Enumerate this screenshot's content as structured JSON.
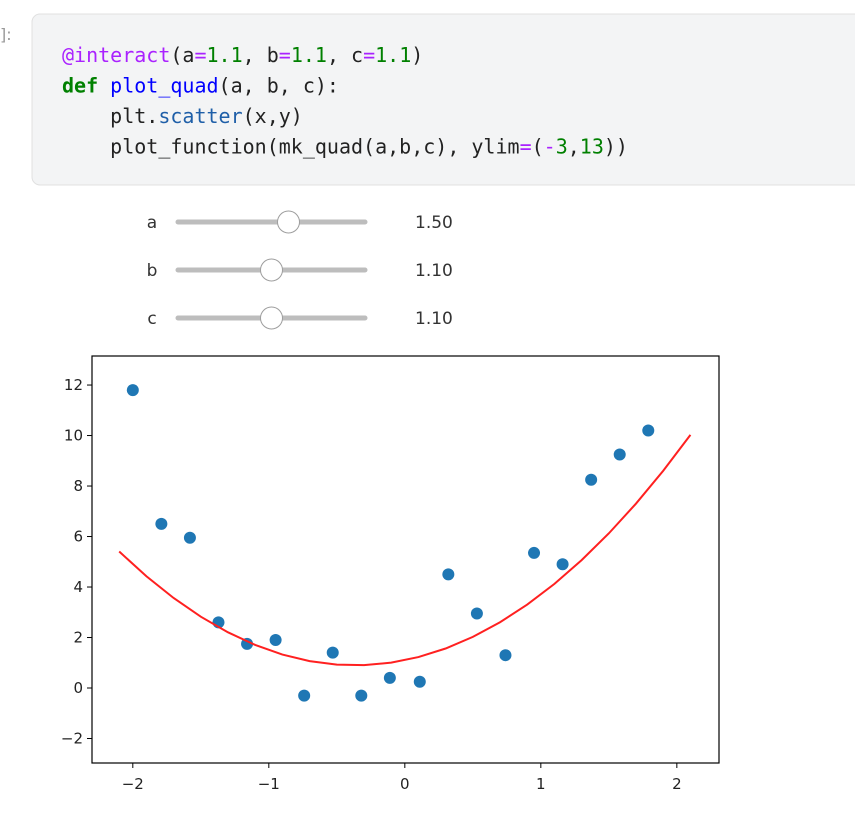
{
  "prompt": "]:",
  "code": {
    "lines": [
      [
        {
          "text": "@interact",
          "color": "#aa22ff"
        },
        {
          "text": "(a",
          "color": "#222222"
        },
        {
          "text": "=",
          "color": "#aa22ff"
        },
        {
          "text": "1.1",
          "color": "#008000"
        },
        {
          "text": ", b",
          "color": "#222222"
        },
        {
          "text": "=",
          "color": "#aa22ff"
        },
        {
          "text": "1.1",
          "color": "#008000"
        },
        {
          "text": ", c",
          "color": "#222222"
        },
        {
          "text": "=",
          "color": "#aa22ff"
        },
        {
          "text": "1.1",
          "color": "#008000"
        },
        {
          "text": ")",
          "color": "#222222"
        }
      ],
      [
        {
          "text": "def",
          "color": "#008000",
          "bold": true
        },
        {
          "text": " ",
          "color": "#222222"
        },
        {
          "text": "plot_quad",
          "color": "#0000ff"
        },
        {
          "text": "(a, b, c):",
          "color": "#222222"
        }
      ],
      [
        {
          "text": "    plt.",
          "color": "#222222"
        },
        {
          "text": "scatter",
          "color": "#1f5fa8"
        },
        {
          "text": "(x,y)",
          "color": "#222222"
        }
      ],
      [
        {
          "text": "    plot_function(mk_quad(a,b,c), ylim",
          "color": "#222222"
        },
        {
          "text": "=",
          "color": "#aa22ff"
        },
        {
          "text": "(",
          "color": "#222222"
        },
        {
          "text": "-",
          "color": "#aa22ff"
        },
        {
          "text": "3",
          "color": "#008000"
        },
        {
          "text": ",",
          "color": "#222222"
        },
        {
          "text": "13",
          "color": "#008000"
        },
        {
          "text": "))",
          "color": "#222222"
        }
      ]
    ]
  },
  "sliders": [
    {
      "label": "a",
      "value": 1.5,
      "value_label": "1.50",
      "range": [
        -1.1,
        3.3
      ]
    },
    {
      "label": "b",
      "value": 1.1,
      "value_label": "1.10",
      "range": [
        -1.1,
        3.3
      ]
    },
    {
      "label": "c",
      "value": 1.1,
      "value_label": "1.10",
      "range": [
        -1.1,
        3.3
      ]
    }
  ],
  "chart_data": {
    "type": "scatter",
    "xlim": [
      -2.3,
      2.31
    ],
    "ylim": [
      -2.97,
      13.15
    ],
    "xticks": [
      {
        "value": -2,
        "label": "−2"
      },
      {
        "value": -1,
        "label": "−1"
      },
      0,
      1,
      2
    ],
    "yticks": [
      {
        "value": -2,
        "label": "−2"
      },
      0,
      2,
      4,
      6,
      8,
      10,
      12
    ],
    "series": [
      {
        "type": "scatter",
        "color": "#1f77b4",
        "x": [
          -2,
          -1.79,
          -1.58,
          -1.37,
          -1.16,
          -0.95,
          -0.74,
          -0.53,
          -0.32,
          -0.11,
          0.11,
          0.32,
          0.53,
          0.74,
          0.95,
          1.16,
          1.37,
          1.58,
          1.79
        ],
        "values": [
          11.8,
          6.5,
          5.95,
          2.6,
          1.75,
          1.9,
          -0.3,
          1.4,
          -0.3,
          0.4,
          0.25,
          4.5,
          2.95,
          1.3,
          5.35,
          4.9,
          8.25,
          9.25,
          10.2
        ]
      },
      {
        "type": "line",
        "color": "#ff2020",
        "x": [
          -2.1,
          -1.9,
          -1.7,
          -1.5,
          -1.3,
          -1.1,
          -0.9,
          -0.7,
          -0.5,
          -0.3,
          -0.1,
          0.1,
          0.3,
          0.5,
          0.7,
          0.9,
          1.1,
          1.3,
          1.5,
          1.7,
          1.9,
          2.1
        ],
        "values": [
          5.405,
          4.425,
          3.565,
          2.825,
          2.205,
          1.705,
          1.325,
          1.065,
          0.925,
          0.905,
          1.005,
          1.225,
          1.565,
          2.025,
          2.605,
          3.305,
          4.125,
          5.065,
          6.125,
          7.305,
          8.605,
          10.025
        ]
      }
    ]
  }
}
